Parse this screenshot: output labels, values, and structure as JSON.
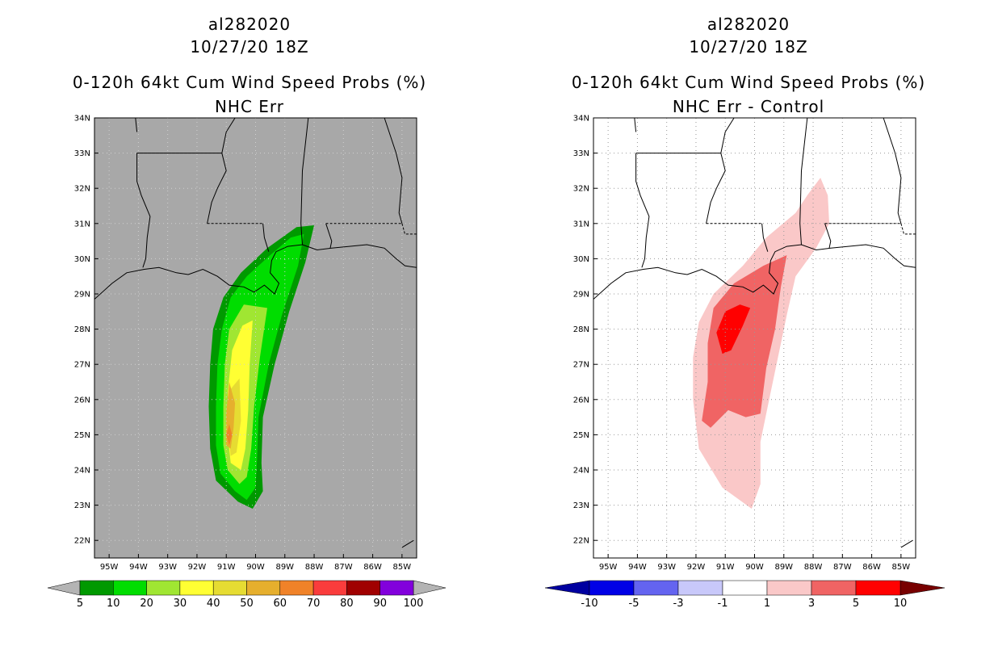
{
  "chart_data": [
    {
      "type": "contour-map",
      "storm_id": "al282020",
      "datetime": "10/27/20 18Z",
      "title": "0-120h 64kt Cum Wind Speed Probs (%)",
      "subtitle": "NHC Err",
      "background": "#a8a8a8",
      "lat_ticks": [
        "22N",
        "23N",
        "24N",
        "25N",
        "26N",
        "27N",
        "28N",
        "29N",
        "30N",
        "31N",
        "32N",
        "33N",
        "34N"
      ],
      "lon_ticks": [
        "95W",
        "94W",
        "93W",
        "92W",
        "91W",
        "90W",
        "89W",
        "88W",
        "87W",
        "86W",
        "85W"
      ],
      "lat_range": [
        21.5,
        34
      ],
      "lon_range": [
        95.5,
        84.5
      ],
      "colorbar": {
        "labels": [
          "5",
          "10",
          "20",
          "30",
          "40",
          "50",
          "60",
          "70",
          "80",
          "90",
          "100"
        ],
        "colors": [
          "#009900",
          "#00dd00",
          "#a0e632",
          "#ffff33",
          "#e6dc32",
          "#e6af2d",
          "#f08228",
          "#fa3c3c",
          "#a00000",
          "#8200dc"
        ],
        "under": "#b4b4b4",
        "over": "#b4b4b4"
      },
      "contours": [
        {
          "level": 5,
          "poly": [
            [
              30.95,
              -88.0
            ],
            [
              29.9,
              -88.3
            ],
            [
              28.5,
              -88.85
            ],
            [
              27.0,
              -89.35
            ],
            [
              25.5,
              -89.75
            ],
            [
              24.2,
              -89.8
            ],
            [
              23.4,
              -89.75
            ],
            [
              22.9,
              -90.1
            ],
            [
              23.1,
              -90.6
            ],
            [
              23.7,
              -91.35
            ],
            [
              24.6,
              -91.55
            ],
            [
              25.8,
              -91.6
            ],
            [
              27.0,
              -91.55
            ],
            [
              28.0,
              -91.45
            ],
            [
              28.9,
              -91.1
            ],
            [
              29.6,
              -90.5
            ],
            [
              30.3,
              -89.6
            ],
            [
              30.9,
              -88.6
            ]
          ]
        },
        {
          "level": 10,
          "poly": [
            [
              30.7,
              -88.35
            ],
            [
              29.8,
              -88.55
            ],
            [
              28.4,
              -89.1
            ],
            [
              27.0,
              -89.55
            ],
            [
              25.5,
              -89.9
            ],
            [
              24.3,
              -89.95
            ],
            [
              23.5,
              -90.0
            ],
            [
              23.15,
              -90.3
            ],
            [
              23.4,
              -90.7
            ],
            [
              23.9,
              -91.2
            ],
            [
              24.7,
              -91.35
            ],
            [
              25.8,
              -91.35
            ],
            [
              27.0,
              -91.3
            ],
            [
              28.0,
              -91.15
            ],
            [
              28.9,
              -90.85
            ],
            [
              29.5,
              -90.3
            ],
            [
              30.1,
              -89.5
            ],
            [
              30.6,
              -88.8
            ]
          ]
        },
        {
          "level": 20,
          "poly": [
            [
              28.6,
              -89.6
            ],
            [
              27.2,
              -89.85
            ],
            [
              25.8,
              -90.05
            ],
            [
              24.6,
              -90.15
            ],
            [
              23.8,
              -90.3
            ],
            [
              23.6,
              -90.55
            ],
            [
              24.0,
              -90.95
            ],
            [
              24.7,
              -91.1
            ],
            [
              25.8,
              -91.1
            ],
            [
              27.0,
              -91.05
            ],
            [
              28.0,
              -90.9
            ],
            [
              28.7,
              -90.4
            ]
          ]
        },
        {
          "level": 30,
          "poly": [
            [
              28.25,
              -90.1
            ],
            [
              27.0,
              -90.2
            ],
            [
              25.7,
              -90.25
            ],
            [
              24.6,
              -90.35
            ],
            [
              24.0,
              -90.5
            ],
            [
              24.2,
              -90.85
            ],
            [
              25.0,
              -90.95
            ],
            [
              26.2,
              -90.95
            ],
            [
              27.4,
              -90.8
            ],
            [
              28.1,
              -90.45
            ]
          ]
        },
        {
          "level": 40,
          "poly": [
            [
              26.6,
              -90.55
            ],
            [
              25.4,
              -90.5
            ],
            [
              24.5,
              -90.65
            ],
            [
              24.4,
              -90.85
            ],
            [
              25.3,
              -90.95
            ],
            [
              26.3,
              -90.85
            ]
          ]
        },
        {
          "level": 50,
          "poly": [
            [
              26.5,
              -90.9
            ],
            [
              25.9,
              -90.7
            ],
            [
              25.2,
              -90.75
            ],
            [
              24.6,
              -90.85
            ],
            [
              24.7,
              -91.0
            ],
            [
              25.6,
              -91.0
            ]
          ]
        },
        {
          "level": 60,
          "poly": [
            [
              25.3,
              -90.9
            ],
            [
              25.0,
              -90.8
            ],
            [
              24.7,
              -90.9
            ],
            [
              25.0,
              -91.0
            ]
          ]
        }
      ]
    },
    {
      "type": "contour-map",
      "storm_id": "al282020",
      "datetime": "10/27/20 18Z",
      "title": "0-120h 64kt Cum Wind Speed Probs (%)",
      "subtitle": "NHC Err - Control",
      "background": "#ffffff",
      "lat_ticks": [
        "22N",
        "23N",
        "24N",
        "25N",
        "26N",
        "27N",
        "28N",
        "29N",
        "30N",
        "31N",
        "32N",
        "33N",
        "34N"
      ],
      "lon_ticks": [
        "95W",
        "94W",
        "93W",
        "92W",
        "91W",
        "90W",
        "89W",
        "88W",
        "87W",
        "86W",
        "85W"
      ],
      "lat_range": [
        21.5,
        34
      ],
      "lon_range": [
        95.5,
        84.5
      ],
      "colorbar": {
        "labels": [
          "-10",
          "-5",
          "-3",
          "-1",
          "1",
          "3",
          "5",
          "10"
        ],
        "colors": [
          "#0000e6",
          "#6464f0",
          "#c8c8fa",
          "#ffffff",
          "#fac8c8",
          "#f06464",
          "#ff0000"
        ],
        "under": "#0000a0",
        "over": "#780000"
      },
      "contours": [
        {
          "level": 1,
          "poly": [
            [
              32.3,
              -87.75
            ],
            [
              31.8,
              -87.5
            ],
            [
              31.0,
              -87.45
            ],
            [
              30.3,
              -87.9
            ],
            [
              29.5,
              -88.6
            ],
            [
              28.4,
              -88.9
            ],
            [
              27.2,
              -89.2
            ],
            [
              26.0,
              -89.5
            ],
            [
              24.8,
              -89.8
            ],
            [
              23.6,
              -89.8
            ],
            [
              22.9,
              -90.1
            ],
            [
              23.5,
              -91.1
            ],
            [
              24.6,
              -91.9
            ],
            [
              26.0,
              -92.1
            ],
            [
              27.2,
              -92.1
            ],
            [
              28.2,
              -91.9
            ],
            [
              29.0,
              -91.4
            ],
            [
              29.8,
              -90.4
            ],
            [
              30.6,
              -89.6
            ],
            [
              31.3,
              -88.6
            ],
            [
              31.8,
              -88.2
            ]
          ]
        },
        {
          "level": 3,
          "poly": [
            [
              30.1,
              -88.9
            ],
            [
              29.2,
              -89.1
            ],
            [
              28.0,
              -89.3
            ],
            [
              26.9,
              -89.6
            ],
            [
              25.6,
              -89.8
            ],
            [
              25.5,
              -90.3
            ],
            [
              25.7,
              -90.9
            ],
            [
              25.2,
              -91.5
            ],
            [
              25.4,
              -91.8
            ],
            [
              26.5,
              -91.6
            ],
            [
              27.6,
              -91.6
            ],
            [
              28.6,
              -91.4
            ],
            [
              29.3,
              -90.7
            ],
            [
              29.8,
              -89.7
            ]
          ]
        },
        {
          "level": 5,
          "poly": [
            [
              28.6,
              -90.15
            ],
            [
              28.1,
              -90.4
            ],
            [
              27.4,
              -90.8
            ],
            [
              27.3,
              -91.1
            ],
            [
              27.9,
              -91.3
            ],
            [
              28.5,
              -91.0
            ],
            [
              28.7,
              -90.5
            ]
          ]
        }
      ]
    }
  ],
  "panels": [
    {
      "storm_id": "al282020",
      "datetime": "10/27/20 18Z",
      "title": "0-120h 64kt Cum Wind Speed Probs (%)",
      "subtitle": "NHC Err"
    },
    {
      "storm_id": "al282020",
      "datetime": "10/27/20 18Z",
      "title": "0-120h 64kt Cum Wind Speed Probs (%)",
      "subtitle": "NHC Err - Control"
    }
  ]
}
